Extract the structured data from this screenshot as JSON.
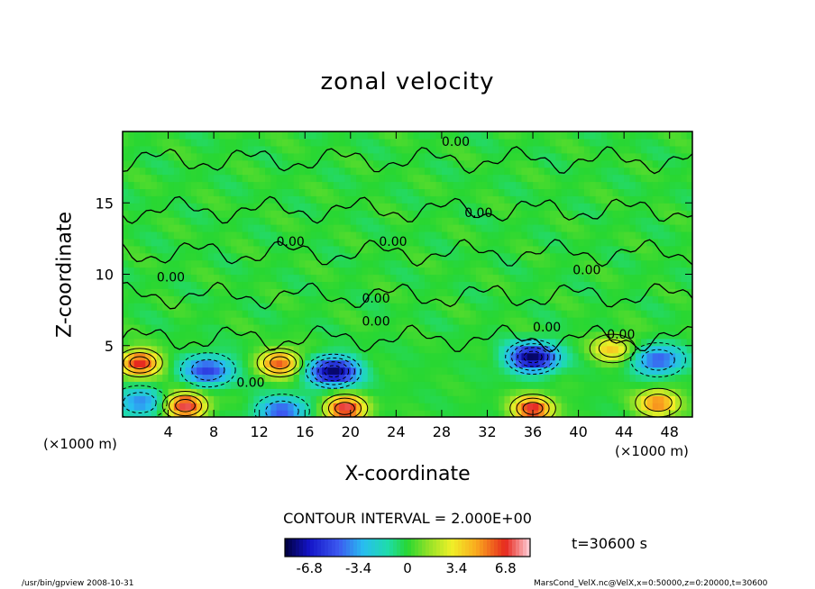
{
  "chart_data": {
    "type": "heatmap",
    "title": "zonal velocity",
    "xlabel": "X-coordinate",
    "ylabel": "Z-coordinate",
    "x_unit": "(×1000 m)",
    "x_ticks": [
      4,
      8,
      12,
      16,
      20,
      24,
      28,
      32,
      36,
      40,
      44,
      48
    ],
    "y_ticks": [
      5,
      10,
      15
    ],
    "xlim": [
      0,
      50
    ],
    "ylim": [
      0,
      20
    ],
    "contour_interval_text": "CONTOUR INTERVAL = 2.000E+00",
    "contour_labels": [
      "0.00",
      "0.00",
      "0.00",
      "0.00",
      "0.00",
      "0.00",
      "0.00",
      "0.00",
      "0.00",
      "0.00",
      "0.00"
    ],
    "colorbar": {
      "ticks": [
        "-6.8",
        "-3.4",
        "0",
        "3.4",
        "6.8"
      ],
      "range": [
        -8.5,
        8.5
      ]
    },
    "time_label": "t=30600 s",
    "features": [
      {
        "kind": "negative",
        "x": 7.5,
        "z": 3.3,
        "value": -5.5
      },
      {
        "kind": "negative",
        "x": 18.5,
        "z": 3.2,
        "value": -8.0
      },
      {
        "kind": "negative",
        "x": 36.0,
        "z": 4.2,
        "value": -8.0
      },
      {
        "kind": "negative",
        "x": 47.0,
        "z": 4.0,
        "value": -5.0
      },
      {
        "kind": "negative",
        "x": 1.5,
        "z": 1.0,
        "value": -4.0
      },
      {
        "kind": "negative",
        "x": 14.0,
        "z": 0.4,
        "value": -5.0
      },
      {
        "kind": "positive",
        "x": 1.5,
        "z": 3.8,
        "value": 7.0
      },
      {
        "kind": "positive",
        "x": 5.5,
        "z": 0.8,
        "value": 7.5
      },
      {
        "kind": "positive",
        "x": 13.8,
        "z": 3.8,
        "value": 6.0
      },
      {
        "kind": "positive",
        "x": 19.5,
        "z": 0.6,
        "value": 7.5
      },
      {
        "kind": "positive",
        "x": 36.0,
        "z": 0.6,
        "value": 7.0
      },
      {
        "kind": "positive",
        "x": 47.0,
        "z": 1.0,
        "value": 5.5
      },
      {
        "kind": "positive",
        "x": 43.0,
        "z": 4.8,
        "value": 4.0
      }
    ]
  },
  "footer": {
    "left": "/usr/bin/gpview   2008-10-31",
    "right": "MarsCond_VelX.nc@VelX,x=0:50000,z=0:20000,t=30600"
  }
}
